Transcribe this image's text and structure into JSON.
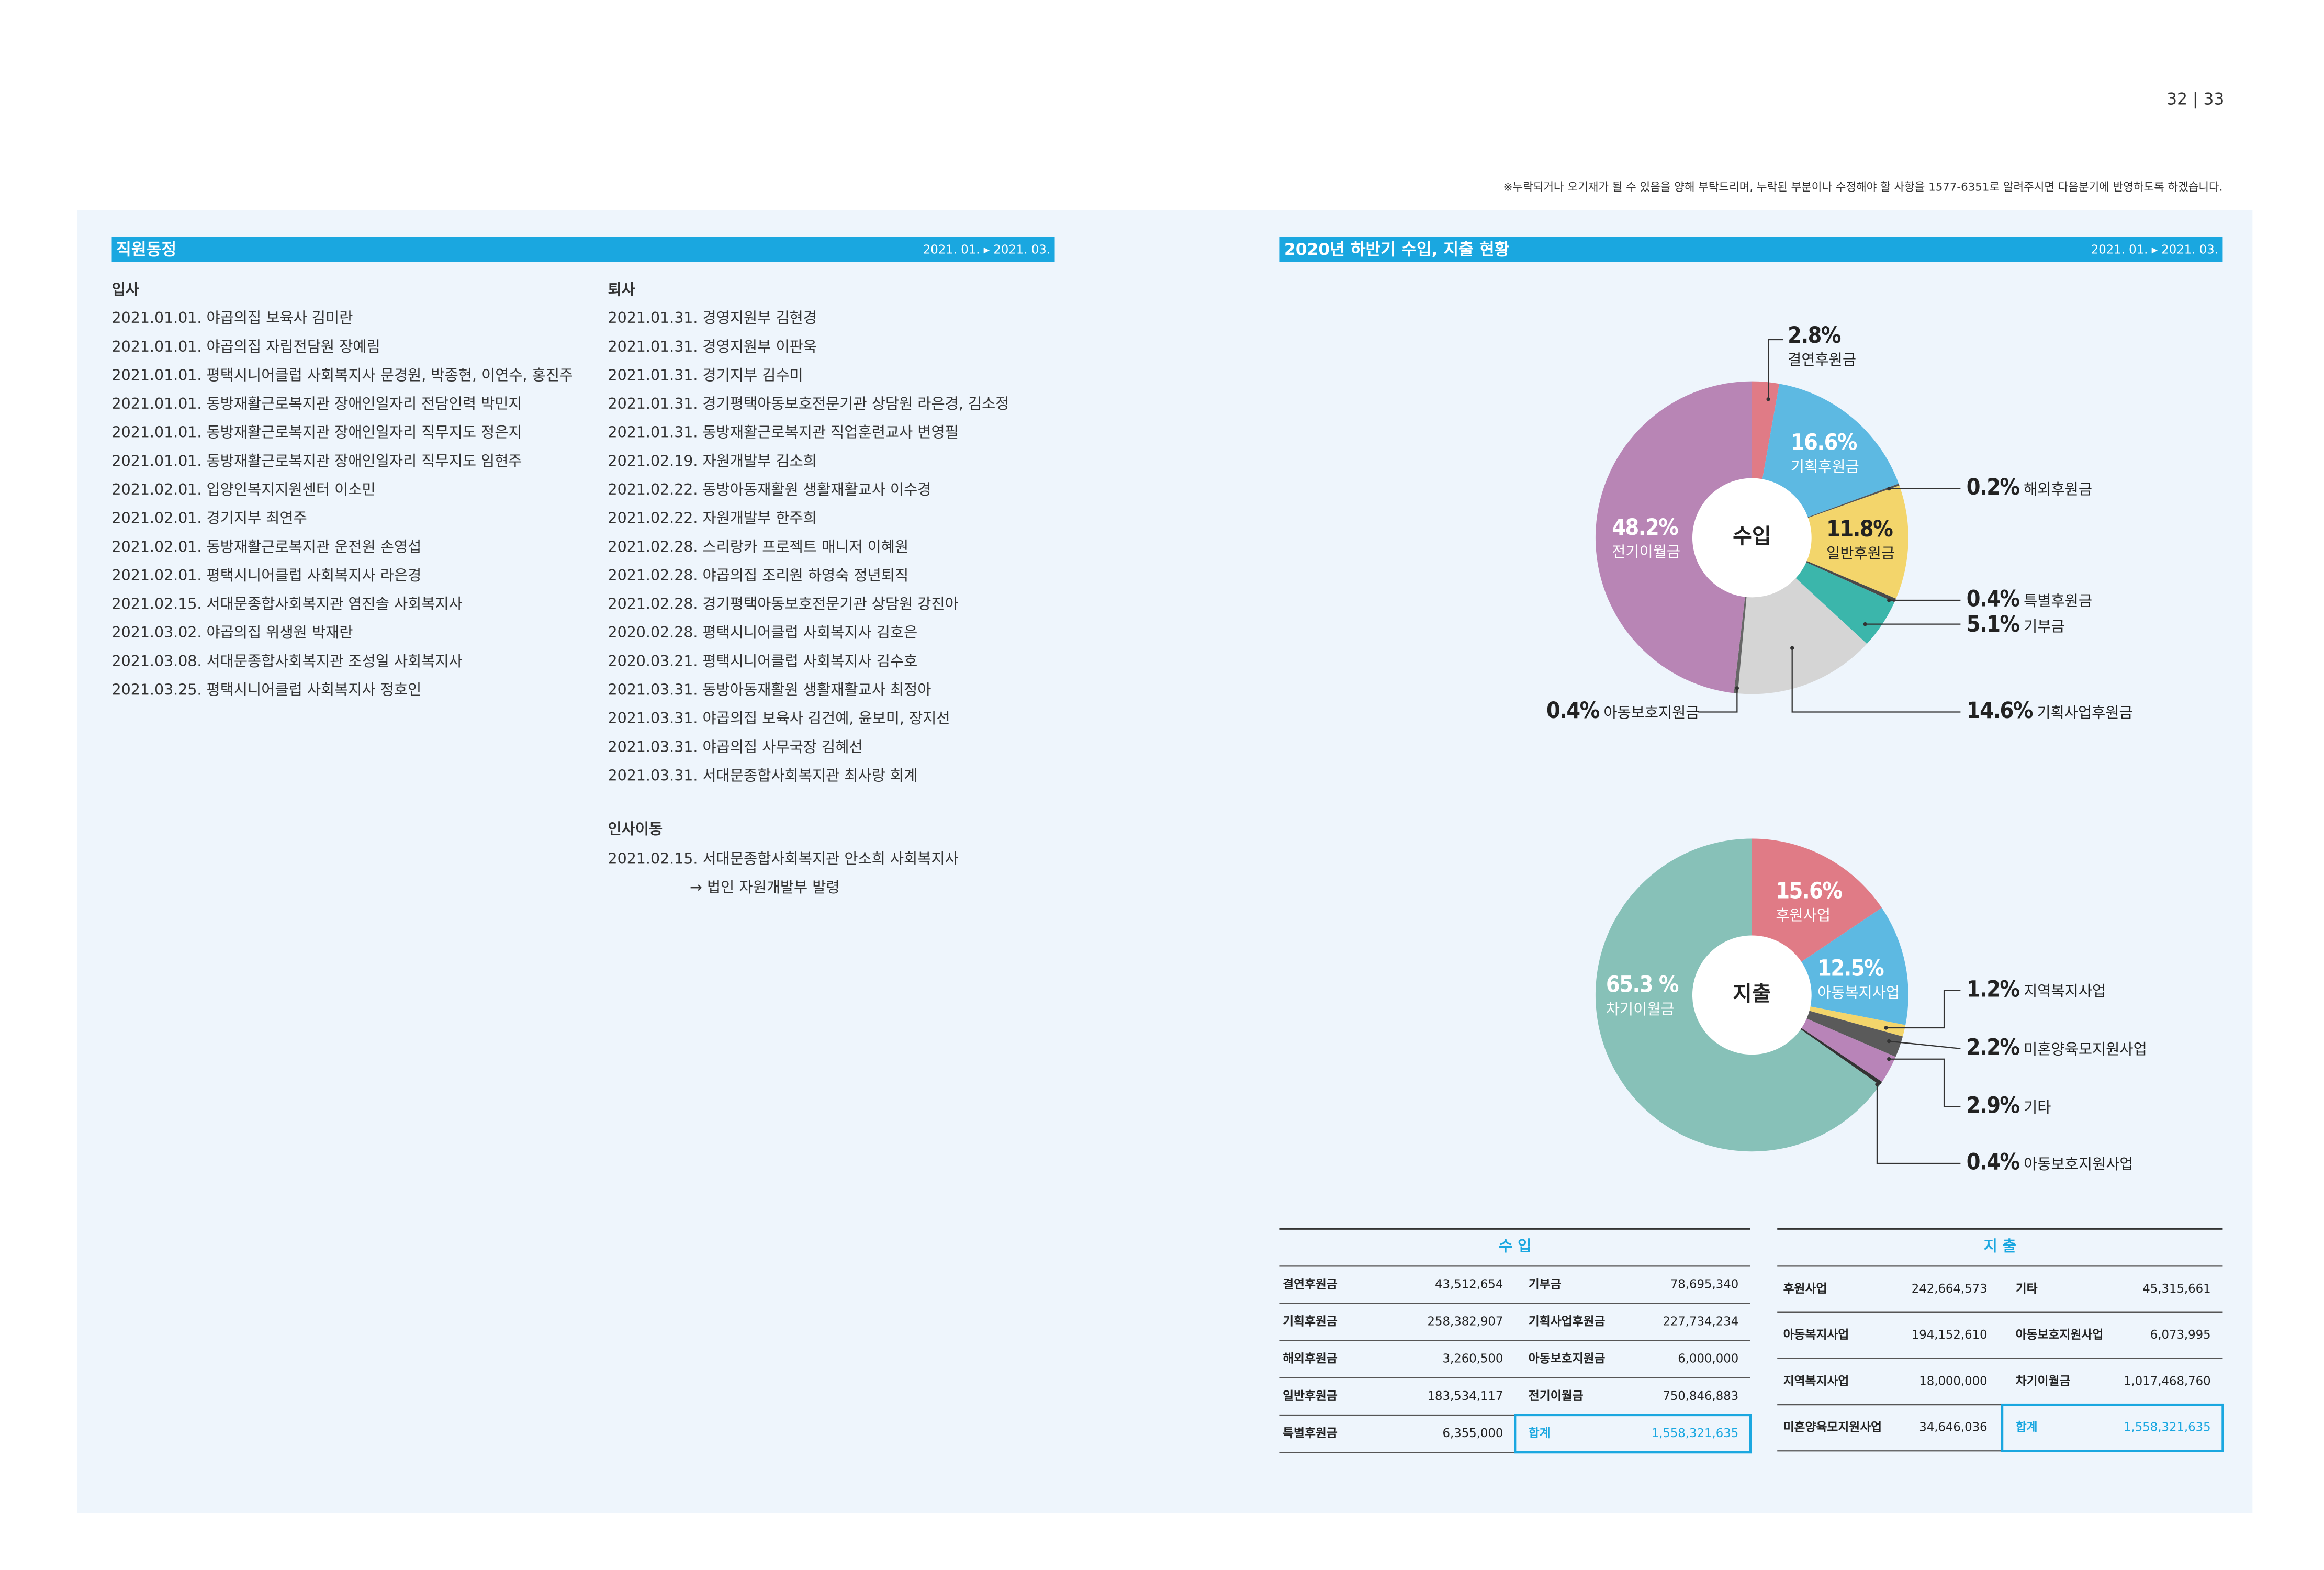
{
  "page_number": "32 | 33",
  "notice": "※누락되거나 오기재가 될 수 있음을 양해 부탁드리며, 누락된 부분이나 수정해야 할 사항을 1577-6351로 알려주시면 다음분기에 반영하도록 하겠습니다.",
  "staff": {
    "title": "직원동정",
    "period": "2021. 01. ▸ 2021. 03.",
    "hire": {
      "heading": "입사",
      "items": [
        "2021.01.01. 야곱의집 보육사 김미란",
        "2021.01.01. 야곱의집 자립전담원 장예림",
        "2021.01.01. 평택시니어클럽 사회복지사 문경원, 박종현, 이연수, 홍진주",
        "2021.01.01. 동방재활근로복지관 장애인일자리 전담인력 박민지",
        "2021.01.01. 동방재활근로복지관 장애인일자리 직무지도 정은지",
        "2021.01.01. 동방재활근로복지관 장애인일자리 직무지도 임현주",
        "2021.02.01. 입양인복지지원센터 이소민",
        "2021.02.01. 경기지부 최연주",
        "2021.02.01. 동방재활근로복지관 운전원 손영섭",
        "2021.02.01. 평택시니어클럽 사회복지사 라은경",
        "2021.02.15. 서대문종합사회복지관 염진솔 사회복지사",
        "2021.03.02. 야곱의집 위생원 박재란",
        "2021.03.08. 서대문종합사회복지관 조성일 사회복지사",
        "2021.03.25. 평택시니어클럽 사회복지사 정호인"
      ]
    },
    "leave": {
      "heading": "퇴사",
      "items": [
        "2021.01.31. 경영지원부 김현경",
        "2021.01.31. 경영지원부 이판욱",
        "2021.01.31. 경기지부 김수미",
        "2021.01.31. 경기평택아동보호전문기관 상담원 라은경, 김소정",
        "2021.01.31. 동방재활근로복지관 직업훈련교사 변영필",
        "2021.02.19. 자원개발부 김소희",
        "2021.02.22. 동방아동재활원 생활재활교사 이수경",
        "2021.02.22. 자원개발부 한주희",
        "2021.02.28. 스리랑카 프로젝트 매니저 이혜원",
        "2021.02.28. 야곱의집 조리원 하영숙 정년퇴직",
        "2021.02.28. 경기평택아동보호전문기관 상담원 강진아",
        "2020.02.28. 평택시니어클럽 사회복지사 김호은",
        "2020.03.21. 평택시니어클럽 사회복지사 김수호",
        "2021.03.31. 동방아동재활원 생활재활교사 최정아",
        "2021.03.31. 야곱의집 보육사 김건예, 윤보미, 장지선",
        "2021.03.31. 야곱의집 사무국장 김혜선",
        "2021.03.31. 서대문종합사회복지관 최사랑 회계"
      ]
    },
    "transfer": {
      "heading": "인사이동",
      "items": [
        "2021.02.15. 서대문종합사회복지관 안소희 사회복지사",
        "→ 법인 자원개발부 발령"
      ]
    }
  },
  "finance": {
    "title": "2020년 하반기 수입, 지출 현황",
    "period": "2021. 01. ▸ 2021. 03.",
    "income_chart": {
      "type": "pie",
      "center_label": "수입",
      "categories": [
        "결연후원금",
        "기획후원금",
        "해외후원금",
        "일반후원금",
        "특별후원금",
        "기부금",
        "기획사업후원금",
        "아동보호지원금",
        "전기이월금"
      ],
      "values": [
        2.8,
        16.6,
        0.2,
        11.8,
        0.4,
        5.1,
        14.6,
        0.4,
        48.2
      ],
      "value_labels": [
        "2.8%",
        "16.6%",
        "0.2%",
        "11.8%",
        "0.4%",
        "5.1%",
        "14.6%",
        "0.4%",
        "48.2%"
      ],
      "colors": [
        "#e07b86",
        "#5db9e2",
        "#555555",
        "#f3d56b",
        "#4a4a4a",
        "#3bb6ab",
        "#d5d5d5",
        "#666666",
        "#b885b5"
      ]
    },
    "expense_chart": {
      "type": "pie",
      "center_label": "지출",
      "categories": [
        "후원사업",
        "아동복지사업",
        "지역복지사업",
        "미혼양육모지원사업",
        "기타",
        "아동보호지원사업",
        "차기이월금"
      ],
      "values": [
        15.6,
        12.5,
        1.2,
        2.2,
        2.9,
        0.4,
        65.3
      ],
      "value_labels": [
        "15.6%",
        "12.5%",
        "1.2%",
        "2.2%",
        "2.9%",
        "0.4%",
        "65.3 %"
      ],
      "colors": [
        "#e07b86",
        "#5db9e2",
        "#f3d56b",
        "#5a5a5a",
        "#b884b8",
        "#333333",
        "#87c1b8"
      ]
    },
    "income_table": {
      "title": "수 입",
      "rows": [
        [
          "결연후원금",
          "43,512,654",
          "기부금",
          "78,695,340"
        ],
        [
          "기획후원금",
          "258,382,907",
          "기획사업후원금",
          "227,734,234"
        ],
        [
          "해외후원금",
          "3,260,500",
          "아동보호지원금",
          "6,000,000"
        ],
        [
          "일반후원금",
          "183,534,117",
          "전기이월금",
          "750,846,883"
        ],
        [
          "특별후원금",
          "6,355,000",
          "합계",
          "1,558,321,635"
        ]
      ]
    },
    "expense_table": {
      "title": "지 출",
      "rows": [
        [
          "후원사업",
          "242,664,573",
          "기타",
          "45,315,661"
        ],
        [
          "아동복지사업",
          "194,152,610",
          "아동보호지원사업",
          "6,073,995"
        ],
        [
          "지역복지사업",
          "18,000,000",
          "차기이월금",
          "1,017,468,760"
        ],
        [
          "미혼양육모지원사업",
          "34,646,036",
          "합계",
          "1,558,321,635"
        ]
      ]
    }
  }
}
